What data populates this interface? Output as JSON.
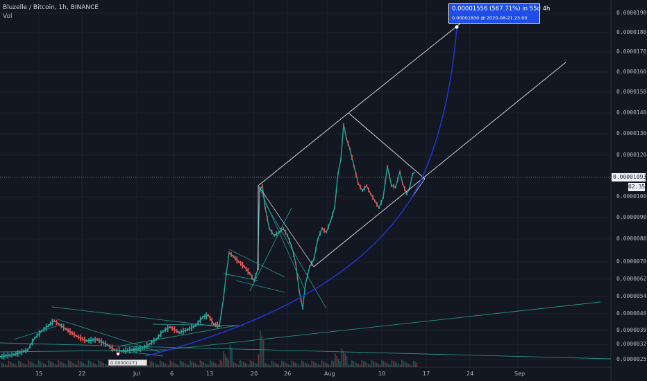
{
  "header": {
    "title": "Bluzelle / Bitcoin, 1h, BINANCE",
    "volume_label": "Vol"
  },
  "price_axis": {
    "labels": [
      "0.00001900",
      "0.00001800",
      "0.00001700",
      "0.00001600",
      "0.00001500",
      "0.00001400",
      "0.00001300",
      "0.00001200",
      "0.00001000",
      "0.00000900",
      "0.00000800",
      "0.00000700",
      "0.00000620",
      "0.00000540",
      "0.00000460",
      "0.00000390",
      "0.00000320",
      "0.00000255"
    ],
    "current_price": "0.00001093",
    "countdown": "02:35"
  },
  "time_axis": {
    "labels": [
      "15",
      "22",
      "Jul",
      "6",
      "13",
      "20",
      "26",
      "Aug",
      "10",
      "17",
      "24",
      "Sep"
    ]
  },
  "projection": {
    "line1": "0.00001556 (567.71%) in 55d 4h",
    "line2": "0.00001830 @ 2020-08-21  23:00"
  },
  "low_marker": "0.00000271",
  "colors": {
    "background": "#131722",
    "up": "#26a69a",
    "down": "#ef5350",
    "channel": "#d1d4dc",
    "trendline": "#26a69a",
    "projection": "#1e4de8",
    "curve": "#2233cc"
  }
}
